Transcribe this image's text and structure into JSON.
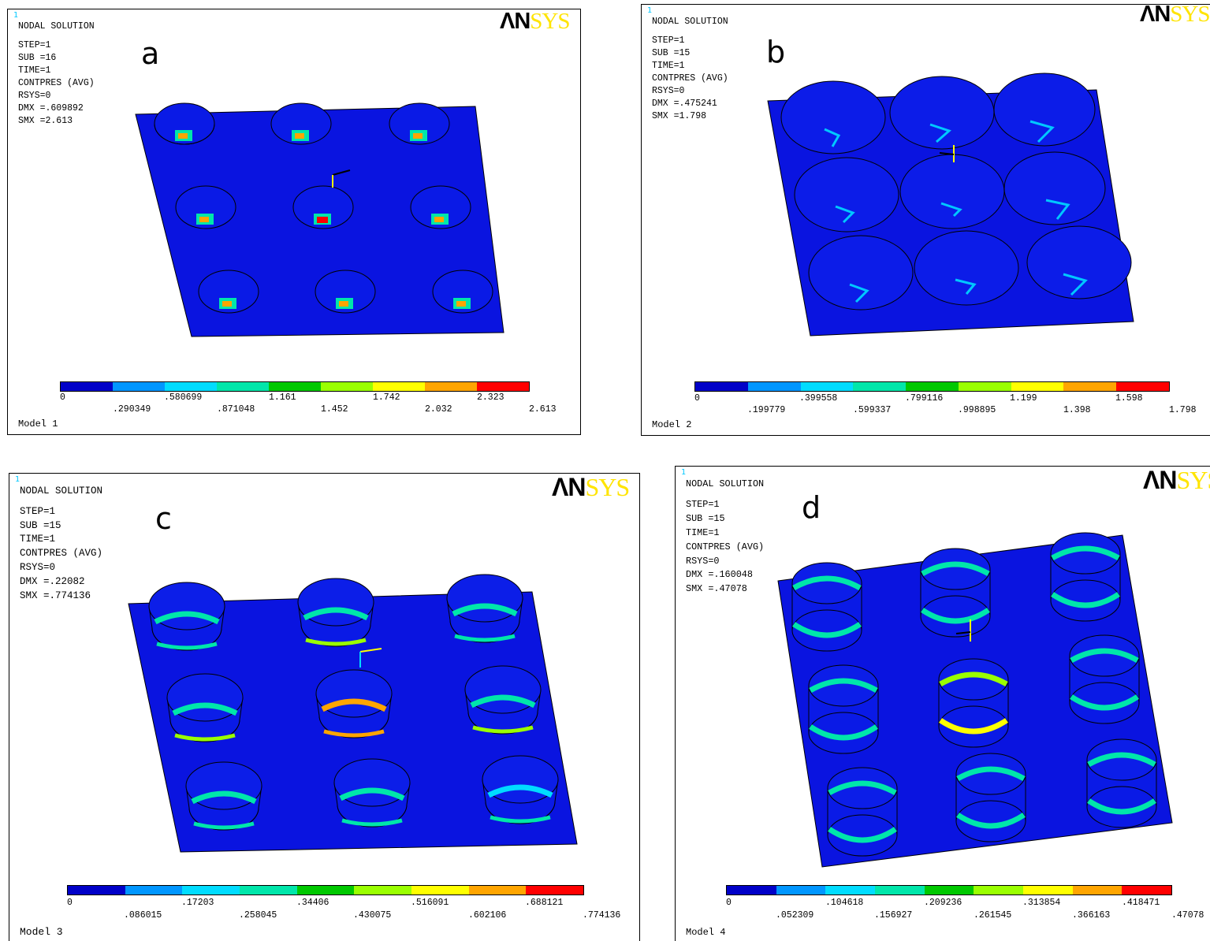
{
  "colors": [
    "#0000c8",
    "#0096ff",
    "#00dcff",
    "#00e6aa",
    "#00c800",
    "#9aff00",
    "#ffff00",
    "#ffa500",
    "#ff0000"
  ],
  "logo": {
    "part1": "ΛN",
    "part2": "SYS"
  },
  "panels": [
    {
      "letter": "a",
      "corner": "1",
      "info": {
        "title": "NODAL SOLUTION",
        "step": "STEP=1",
        "sub": "SUB =16",
        "time": "TIME=1",
        "result": "CONTPRES (AVG)",
        "rsys": "RSYS=0",
        "dmx": "DMX =.609892",
        "smx": "SMX =2.613"
      },
      "legend": {
        "top": [
          "0",
          ".580699",
          "1.161",
          "1.742",
          "2.323"
        ],
        "bottom": [
          ".290349",
          ".871048",
          "1.452",
          "2.032",
          "2.613"
        ]
      },
      "model": "Model 1"
    },
    {
      "letter": "b",
      "corner": "1",
      "info": {
        "title": "NODAL SOLUTION",
        "step": "STEP=1",
        "sub": "SUB =15",
        "time": "TIME=1",
        "result": "CONTPRES (AVG)",
        "rsys": "RSYS=0",
        "dmx": "DMX =.475241",
        "smx": "SMX =1.798"
      },
      "legend": {
        "top": [
          "0",
          ".399558",
          ".799116",
          "1.199",
          "1.598"
        ],
        "bottom": [
          ".199779",
          ".599337",
          ".998895",
          "1.398",
          "1.798"
        ]
      },
      "model": "Model 2"
    },
    {
      "letter": "c",
      "corner": "1",
      "info": {
        "title": "NODAL SOLUTION",
        "step": "STEP=1",
        "sub": "SUB =15",
        "time": "TIME=1",
        "result": "CONTPRES (AVG)",
        "rsys": "RSYS=0",
        "dmx": "DMX =.22082",
        "smx": "SMX =.774136"
      },
      "legend": {
        "top": [
          "0",
          ".17203",
          ".34406",
          ".516091",
          ".688121"
        ],
        "bottom": [
          ".086015",
          ".258045",
          ".430075",
          ".602106",
          ".774136"
        ]
      },
      "model": "Model 3"
    },
    {
      "letter": "d",
      "corner": "1",
      "info": {
        "title": "NODAL SOLUTION",
        "step": "STEP=1",
        "sub": "SUB =15",
        "time": "TIME=1",
        "result": "CONTPRES (AVG)",
        "rsys": "RSYS=0",
        "dmx": "DMX =.160048",
        "smx": "SMX =.47078"
      },
      "legend": {
        "top": [
          "0",
          ".104618",
          ".209236",
          ".313854",
          ".418471"
        ],
        "bottom": [
          ".052309",
          ".156927",
          ".261545",
          ".366163",
          ".47078"
        ]
      },
      "model": "Model 4"
    }
  ]
}
